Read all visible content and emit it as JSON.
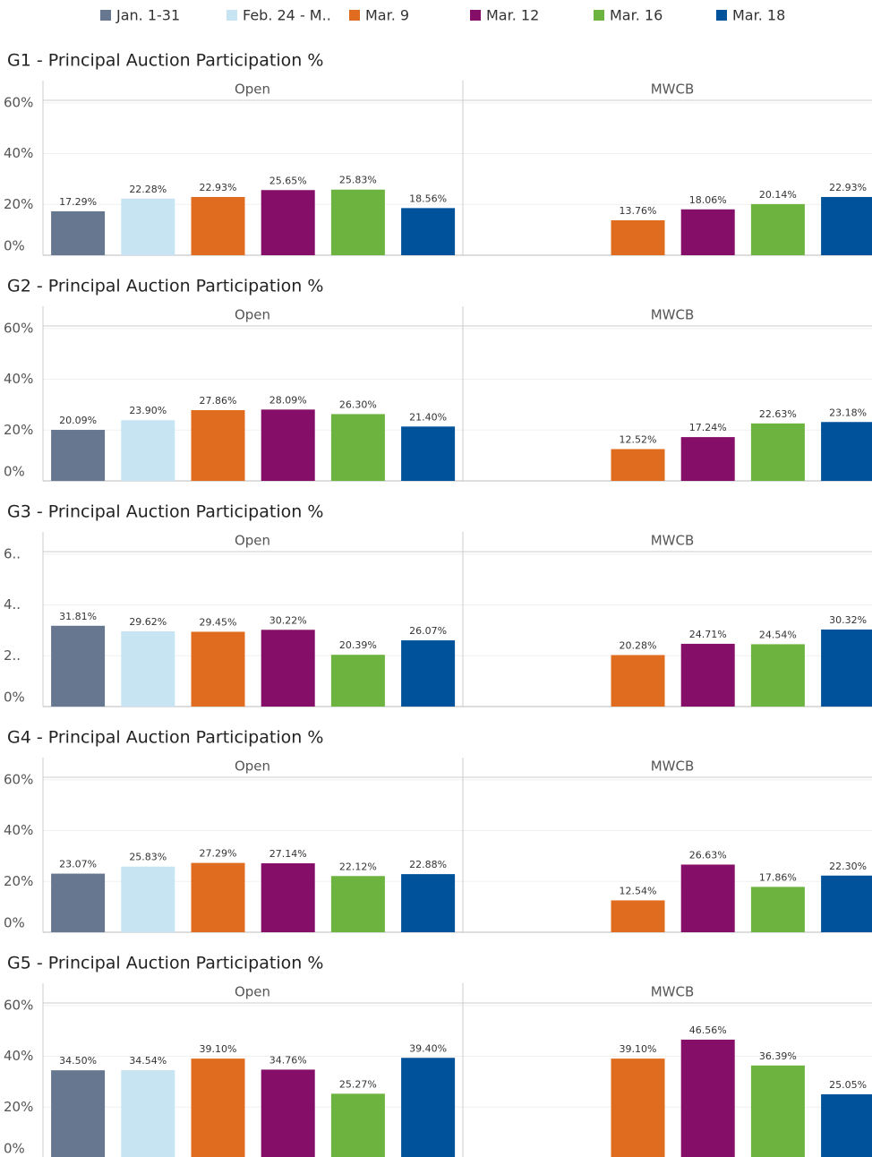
{
  "legend": [
    {
      "name": "Jan. 1-31",
      "color": "#66778f"
    },
    {
      "name": "Feb. 24 - M..",
      "color": "#c6e4f2"
    },
    {
      "name": "Mar. 9",
      "color": "#e06c1f"
    },
    {
      "name": "Mar. 12",
      "color": "#850e69"
    },
    {
      "name": "Mar. 16",
      "color": "#6db33f"
    },
    {
      "name": "Mar. 18",
      "color": "#00529b"
    }
  ],
  "chart_data": [
    {
      "type": "bar",
      "title": "G1 - Principal Auction Participation %",
      "categories": [
        "Open",
        "MWCB"
      ],
      "ylim": [
        0,
        61
      ],
      "yticks": [
        {
          "value": 0,
          "label": "0%"
        },
        {
          "value": 20,
          "label": "20%"
        },
        {
          "value": 40,
          "label": "40%"
        },
        {
          "value": 60,
          "label": "60%"
        }
      ],
      "grid": true,
      "series": [
        {
          "values": [
            17.29,
            null
          ],
          "value_labels": [
            "17.29%",
            null
          ]
        },
        {
          "values": [
            22.28,
            null
          ],
          "value_labels": [
            "22.28%",
            null
          ]
        },
        {
          "values": [
            22.93,
            13.76
          ],
          "value_labels": [
            "22.93%",
            "13.76%"
          ]
        },
        {
          "values": [
            25.65,
            18.06
          ],
          "value_labels": [
            "25.65%",
            "18.06%"
          ]
        },
        {
          "values": [
            25.83,
            20.14
          ],
          "value_labels": [
            "25.83%",
            "20.14%"
          ]
        },
        {
          "values": [
            18.56,
            22.93
          ],
          "value_labels": [
            "18.56%",
            "22.93%"
          ]
        }
      ]
    },
    {
      "type": "bar",
      "title": "G2 - Principal Auction Participation %",
      "categories": [
        "Open",
        "MWCB"
      ],
      "ylim": [
        0,
        61
      ],
      "yticks": [
        {
          "value": 0,
          "label": "0%"
        },
        {
          "value": 20,
          "label": "20%"
        },
        {
          "value": 40,
          "label": "40%"
        },
        {
          "value": 60,
          "label": "60%"
        }
      ],
      "grid": true,
      "series": [
        {
          "values": [
            20.09,
            null
          ],
          "value_labels": [
            "20.09%",
            null
          ]
        },
        {
          "values": [
            23.9,
            null
          ],
          "value_labels": [
            "23.90%",
            null
          ]
        },
        {
          "values": [
            27.86,
            12.52
          ],
          "value_labels": [
            "27.86%",
            "12.52%"
          ]
        },
        {
          "values": [
            28.09,
            17.24
          ],
          "value_labels": [
            "28.09%",
            "17.24%"
          ]
        },
        {
          "values": [
            26.3,
            22.63
          ],
          "value_labels": [
            "26.30%",
            "22.63%"
          ]
        },
        {
          "values": [
            21.4,
            23.18
          ],
          "value_labels": [
            "21.40%",
            "23.18%"
          ]
        }
      ]
    },
    {
      "type": "bar",
      "title": "G3 - Principal Auction Participation %",
      "categories": [
        "Open",
        "MWCB"
      ],
      "ylim": [
        0,
        61
      ],
      "yticks": [
        {
          "value": 0,
          "label": "0%"
        },
        {
          "value": 20,
          "label": "2.."
        },
        {
          "value": 40,
          "label": "4.."
        },
        {
          "value": 60,
          "label": "6.."
        }
      ],
      "grid": true,
      "series": [
        {
          "values": [
            31.81,
            null
          ],
          "value_labels": [
            "31.81%",
            null
          ]
        },
        {
          "values": [
            29.62,
            null
          ],
          "value_labels": [
            "29.62%",
            null
          ]
        },
        {
          "values": [
            29.45,
            20.28
          ],
          "value_labels": [
            "29.45%",
            "20.28%"
          ]
        },
        {
          "values": [
            30.22,
            24.71
          ],
          "value_labels": [
            "30.22%",
            "24.71%"
          ]
        },
        {
          "values": [
            20.39,
            24.54
          ],
          "value_labels": [
            "20.39%",
            "24.54%"
          ]
        },
        {
          "values": [
            26.07,
            30.32
          ],
          "value_labels": [
            "26.07%",
            "30.32%"
          ]
        }
      ]
    },
    {
      "type": "bar",
      "title": "G4 - Principal Auction Participation %",
      "categories": [
        "Open",
        "MWCB"
      ],
      "ylim": [
        0,
        61
      ],
      "yticks": [
        {
          "value": 0,
          "label": "0%"
        },
        {
          "value": 20,
          "label": "20%"
        },
        {
          "value": 40,
          "label": "40%"
        },
        {
          "value": 60,
          "label": "60%"
        }
      ],
      "grid": true,
      "series": [
        {
          "values": [
            23.07,
            null
          ],
          "value_labels": [
            "23.07%",
            null
          ]
        },
        {
          "values": [
            25.83,
            null
          ],
          "value_labels": [
            "25.83%",
            null
          ]
        },
        {
          "values": [
            27.29,
            12.54
          ],
          "value_labels": [
            "27.29%",
            "12.54%"
          ]
        },
        {
          "values": [
            27.14,
            26.63
          ],
          "value_labels": [
            "27.14%",
            "26.63%"
          ]
        },
        {
          "values": [
            22.12,
            17.86
          ],
          "value_labels": [
            "22.12%",
            "17.86%"
          ]
        },
        {
          "values": [
            22.88,
            22.3
          ],
          "value_labels": [
            "22.88%",
            "22.30%"
          ]
        }
      ]
    },
    {
      "type": "bar",
      "title": "G5 - Principal Auction Participation %",
      "categories": [
        "Open",
        "MWCB"
      ],
      "ylim": [
        0,
        61
      ],
      "yticks": [
        {
          "value": 0,
          "label": "0%"
        },
        {
          "value": 20,
          "label": "20%"
        },
        {
          "value": 40,
          "label": "40%"
        },
        {
          "value": 60,
          "label": "60%"
        }
      ],
      "grid": true,
      "series": [
        {
          "values": [
            34.5,
            null
          ],
          "value_labels": [
            "34.50%",
            null
          ]
        },
        {
          "values": [
            34.54,
            null
          ],
          "value_labels": [
            "34.54%",
            null
          ]
        },
        {
          "values": [
            39.1,
            39.1
          ],
          "value_labels": [
            "39.10%",
            "39.10%"
          ]
        },
        {
          "values": [
            34.76,
            46.56
          ],
          "value_labels": [
            "34.76%",
            "46.56%"
          ]
        },
        {
          "values": [
            25.27,
            36.39
          ],
          "value_labels": [
            "25.27%",
            "36.39%"
          ]
        },
        {
          "values": [
            39.4,
            25.05
          ],
          "value_labels": [
            "39.40%",
            "25.05%"
          ]
        }
      ]
    }
  ]
}
